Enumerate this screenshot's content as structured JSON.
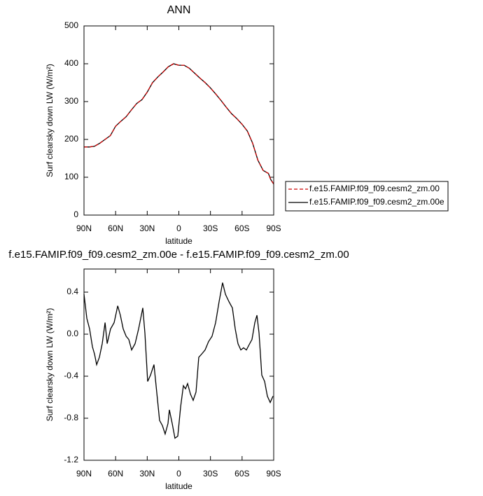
{
  "chart_data": [
    {
      "type": "line",
      "title": "ANN",
      "x_label": "latitude",
      "y_label": "Surf clearsky down LW (W/m²)",
      "x": [
        90,
        85,
        80,
        75,
        70,
        65,
        60,
        55,
        50,
        45,
        40,
        35,
        30,
        25,
        20,
        15,
        10,
        5,
        0,
        -5,
        -10,
        -15,
        -20,
        -25,
        -30,
        -35,
        -40,
        -45,
        -50,
        -55,
        -60,
        -65,
        -70,
        -75,
        -80,
        -85,
        -87,
        -90
      ],
      "series": [
        {
          "name": "f.e15.FAMIP.f09_f09.cesm2_zm.00",
          "color": "#cc0000",
          "dash": true,
          "values": [
            180,
            180,
            182,
            190,
            200,
            210,
            235,
            248,
            260,
            278,
            295,
            305,
            325,
            350,
            365,
            378,
            392,
            400,
            396,
            396,
            388,
            375,
            362,
            350,
            336,
            320,
            303,
            285,
            268,
            255,
            240,
            222,
            190,
            145,
            118,
            110,
            95,
            82
          ]
        },
        {
          "name": "f.e15.FAMIP.f09_f09.cesm2_zm.00e",
          "color": "#000000",
          "dash": false,
          "values": [
            180,
            180,
            182,
            190,
            200,
            210,
            235,
            248,
            260,
            278,
            295,
            305,
            325,
            350,
            365,
            378,
            392,
            400,
            396,
            396,
            388,
            375,
            362,
            350,
            336,
            320,
            303,
            285,
            268,
            255,
            240,
            222,
            190,
            145,
            118,
            110,
            95,
            82
          ]
        }
      ],
      "xlim": [
        90,
        -90
      ],
      "xticks": [
        {
          "value": 90,
          "label": "90N"
        },
        {
          "value": 60,
          "label": "60N"
        },
        {
          "value": 30,
          "label": "30N"
        },
        0,
        {
          "value": -30,
          "label": "30S"
        },
        {
          "value": -60,
          "label": "60S"
        },
        {
          "value": -90,
          "label": "90S"
        }
      ],
      "ylim": [
        0,
        500
      ],
      "yticks": [
        0,
        100,
        200,
        300,
        400,
        500
      ],
      "legend": "outside-right"
    },
    {
      "type": "line",
      "title": "f.e15.FAMIP.f09_f09.cesm2_zm.00e - f.e15.FAMIP.f09_f09.cesm2_zm.00",
      "x_label": "latitude",
      "y_label": "Surf clearsky down LW (W/m²)",
      "x": [
        90,
        87.3,
        84.7,
        82,
        80,
        78,
        75.4,
        72.7,
        70,
        68,
        64.8,
        61.4,
        58,
        55.5,
        52.8,
        50,
        47.5,
        44.8,
        41.5,
        38.2,
        34.2,
        32.2,
        29.6,
        26.9,
        23.6,
        21,
        18.3,
        15.6,
        13,
        10.3,
        9,
        6.3,
        3.7,
        1,
        -1.7,
        -4.3,
        -6.3,
        -8.3,
        -11,
        -13.6,
        -16.3,
        -18.9,
        -21.6,
        -24.9,
        -28.2,
        -31.5,
        -34.9,
        -38.2,
        -41.5,
        -44.2,
        -47.5,
        -50.8,
        -53.5,
        -56.1,
        -58.8,
        -61.4,
        -64.1,
        -66.7,
        -69.4,
        -72.1,
        -74.1,
        -76.1,
        -78.7,
        -81.4,
        -84,
        -86.7,
        -89.3
      ],
      "values": [
        0.38,
        0.15,
        0.05,
        -0.12,
        -0.19,
        -0.29,
        -0.22,
        -0.09,
        0.11,
        -0.09,
        0.05,
        0.11,
        0.27,
        0.18,
        0.05,
        -0.02,
        -0.05,
        -0.15,
        -0.09,
        0.05,
        0.25,
        0.01,
        -0.45,
        -0.39,
        -0.29,
        -0.55,
        -0.82,
        -0.87,
        -0.95,
        -0.85,
        -0.72,
        -0.85,
        -0.99,
        -0.97,
        -0.69,
        -0.49,
        -0.52,
        -0.47,
        -0.57,
        -0.63,
        -0.55,
        -0.22,
        -0.19,
        -0.15,
        -0.07,
        -0.02,
        0.11,
        0.31,
        0.49,
        0.38,
        0.31,
        0.25,
        0.05,
        -0.09,
        -0.15,
        -0.13,
        -0.15,
        -0.1,
        -0.05,
        0.11,
        0.18,
        0.01,
        -0.39,
        -0.45,
        -0.59,
        -0.65,
        -0.59
      ],
      "color": "#000000",
      "xlim": [
        90,
        -90
      ],
      "xticks": [
        {
          "value": 90,
          "label": "90N"
        },
        {
          "value": 60,
          "label": "60N"
        },
        {
          "value": 30,
          "label": "30N"
        },
        0,
        {
          "value": -30,
          "label": "30S"
        },
        {
          "value": -60,
          "label": "60S"
        },
        {
          "value": -90,
          "label": "90S"
        }
      ],
      "ylim": [
        -1.2,
        0.62
      ],
      "yticks": [
        -1.2,
        -0.8,
        -0.4,
        {
          "value": 0,
          "label": "0.0"
        },
        0.4
      ]
    }
  ]
}
